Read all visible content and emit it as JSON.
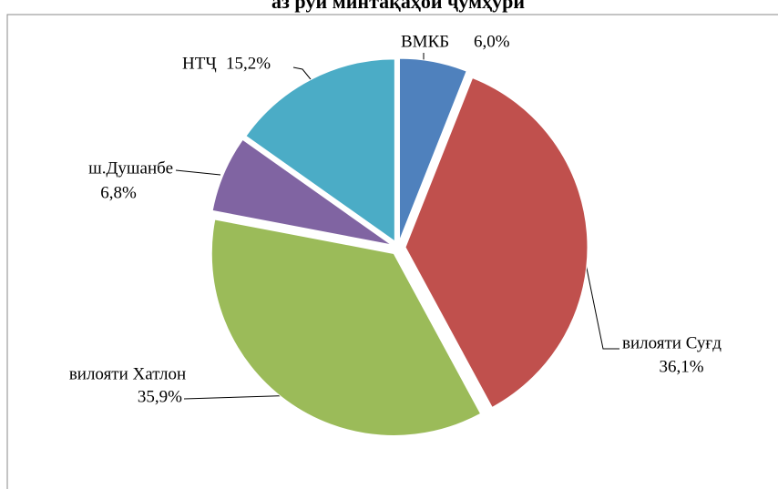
{
  "chart_data": {
    "type": "pie",
    "title": "аз рӯи минтақаҳои ҷумҳурӣ",
    "categories": [
      "ВМКБ",
      "вилояти Суғд",
      "вилояти Хатлон",
      "ш.Душанбе",
      "НТҶ"
    ],
    "values": [
      6.0,
      36.1,
      35.9,
      6.8,
      15.2
    ],
    "value_labels": [
      "6,0%",
      "36,1%",
      "35,9%",
      "6,8%",
      "15,2%"
    ],
    "colors": [
      "#4f81bd",
      "#c0504d",
      "#9bbb59",
      "#8064a2",
      "#4bacc6"
    ]
  }
}
